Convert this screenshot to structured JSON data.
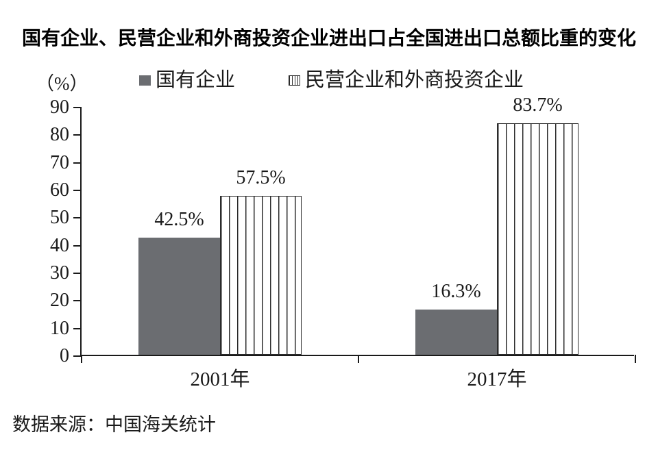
{
  "source_note": "数据来源：中国海关统计",
  "chart_data": {
    "type": "bar",
    "title": "国有企业、民营企业和外商投资企业进出口占全国进出口总额比重的变化",
    "unit_label": "（%）",
    "categories": [
      "2001年",
      "2017年"
    ],
    "series": [
      {
        "name": "国有企业",
        "pattern": "solid",
        "values": [
          42.5,
          16.3
        ],
        "labels": [
          "42.5%",
          "16.3%"
        ]
      },
      {
        "name": "民营企业和外商投资企业",
        "pattern": "striped",
        "values": [
          57.5,
          83.7
        ],
        "labels": [
          "57.5%",
          "83.7%"
        ]
      }
    ],
    "y_ticks": [
      0,
      10,
      20,
      30,
      40,
      50,
      60,
      70,
      80,
      90
    ],
    "ylim": [
      0,
      90
    ],
    "legend_position": "top",
    "grid": false,
    "colors": {
      "solid_bar": "#6b6d71",
      "stripe_line": "#2b2b2b",
      "stripe_bg": "#ffffff",
      "ink": "#1a1a1a"
    }
  }
}
